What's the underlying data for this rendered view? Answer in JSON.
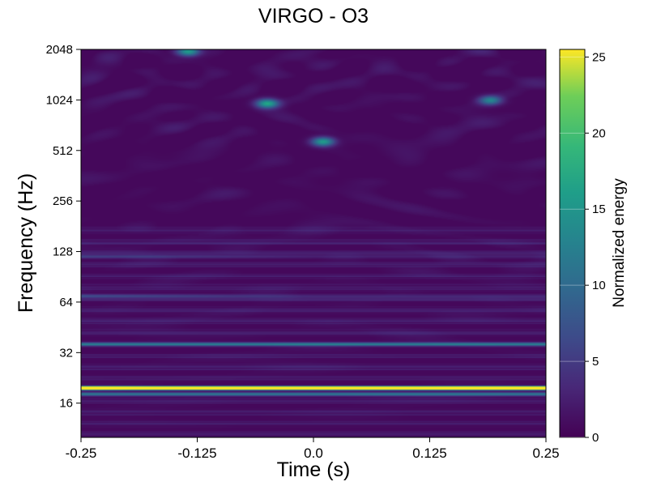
{
  "chart_data": {
    "type": "heatmap",
    "title": "VIRGO - O3",
    "xlabel": "Time (s)",
    "ylabel": "Frequency (Hz)",
    "xlim": [
      -0.25,
      0.25
    ],
    "ylim": [
      10,
      2048
    ],
    "yscale": "log2",
    "x_ticks": [
      {
        "value": -0.25,
        "label": "-0.25"
      },
      {
        "value": -0.125,
        "label": "-0.125"
      },
      {
        "value": 0.0,
        "label": "0.0"
      },
      {
        "value": 0.125,
        "label": "0.125"
      },
      {
        "value": 0.25,
        "label": "0.25"
      }
    ],
    "y_ticks": [
      {
        "value": 16,
        "label": "16"
      },
      {
        "value": 32,
        "label": "32"
      },
      {
        "value": 64,
        "label": "64"
      },
      {
        "value": 128,
        "label": "128"
      },
      {
        "value": 256,
        "label": "256"
      },
      {
        "value": 512,
        "label": "512"
      },
      {
        "value": 1024,
        "label": "1024"
      },
      {
        "value": 2048,
        "label": "2048"
      }
    ],
    "colorbar": {
      "label": "Normalized energy",
      "range": [
        0,
        25.5
      ],
      "ticks": [
        {
          "value": 0,
          "label": "0"
        },
        {
          "value": 5,
          "label": "5"
        },
        {
          "value": 10,
          "label": "10"
        },
        {
          "value": 15,
          "label": "15"
        },
        {
          "value": 20,
          "label": "20"
        },
        {
          "value": 25,
          "label": "25"
        }
      ],
      "colormap": "viridis"
    },
    "features": {
      "dominant_line": {
        "frequency_hz": 19.8,
        "energy": 25.5
      },
      "secondary_lines": [
        {
          "frequency_hz": 18.2,
          "energy": 11
        },
        {
          "frequency_hz": 36,
          "energy": 10
        },
        {
          "frequency_hz": 70,
          "energy": 6
        },
        {
          "frequency_hz": 120,
          "energy": 5
        }
      ],
      "hot_spots": [
        {
          "time_s": -0.135,
          "frequency_hz": 2000,
          "energy": 15
        },
        {
          "time_s": -0.05,
          "frequency_hz": 980,
          "energy": 16
        },
        {
          "time_s": 0.01,
          "frequency_hz": 580,
          "energy": 15
        },
        {
          "time_s": 0.19,
          "frequency_hz": 1024,
          "energy": 12
        }
      ]
    },
    "grid": false,
    "legend": "none"
  }
}
